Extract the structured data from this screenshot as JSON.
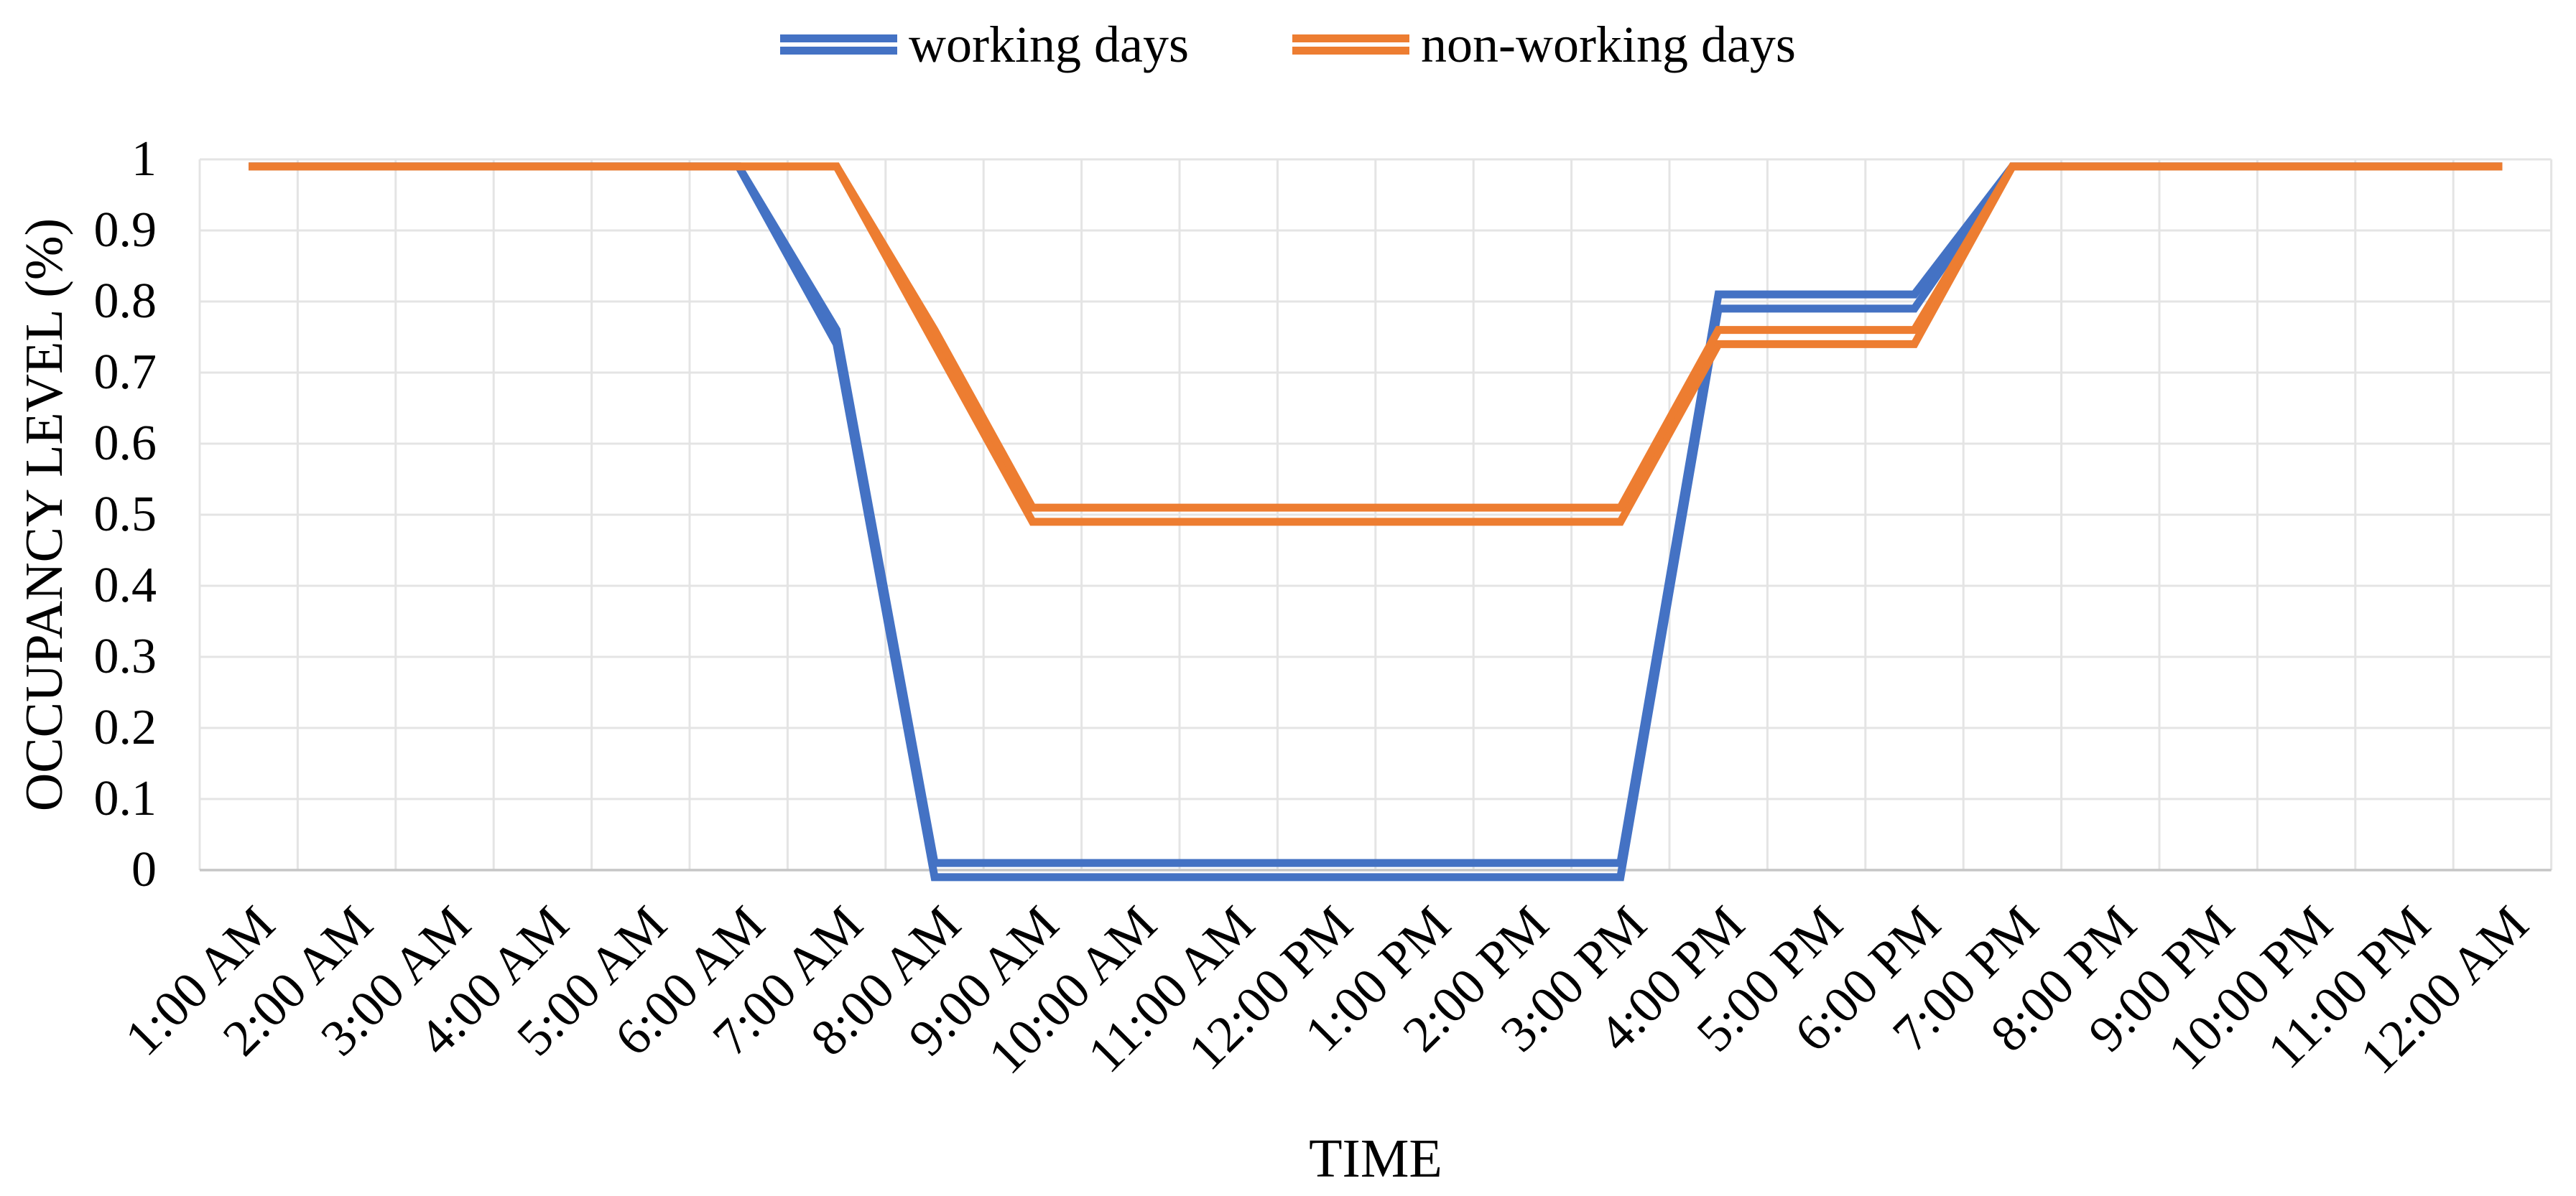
{
  "chart_data": {
    "type": "line",
    "title": "",
    "xlabel": "TIME",
    "ylabel": "OCCUPANCY LEVEL (%)",
    "ylim": [
      0,
      1
    ],
    "ytick_step": 0.1,
    "ytick_labels_top_to_bottom": [
      "1",
      "0.9",
      "0.8",
      "0.7",
      "0.6",
      "0.5",
      "0.4",
      "0.3",
      "0.2",
      "0.1",
      "0"
    ],
    "categories": [
      "1:00 AM",
      "2:00 AM",
      "3:00 AM",
      "4:00 AM",
      "5:00 AM",
      "6:00 AM",
      "7:00 AM",
      "8:00 AM",
      "9:00 AM",
      "10:00 AM",
      "11:00 AM",
      "12:00 PM",
      "1:00 PM",
      "2:00 PM",
      "3:00 PM",
      "4:00 PM",
      "5:00 PM",
      "6:00 PM",
      "7:00 PM",
      "8:00 PM",
      "9:00 PM",
      "10:00 PM",
      "11:00 PM",
      "12:00 AM"
    ],
    "series": [
      {
        "name": "working days",
        "color": "#4472C4",
        "values": [
          1,
          1,
          1,
          1,
          1,
          1,
          0.75,
          0,
          0,
          0,
          0,
          0,
          0,
          0,
          0,
          0.8,
          0.8,
          0.8,
          1,
          1,
          1,
          1,
          1,
          1
        ]
      },
      {
        "name": "non-working days",
        "color": "#ED7D31",
        "values": [
          1,
          1,
          1,
          1,
          1,
          1,
          1,
          0.75,
          0.5,
          0.5,
          0.5,
          0.5,
          0.5,
          0.5,
          0.5,
          0.75,
          0.75,
          0.75,
          1,
          1,
          1,
          1,
          1,
          1
        ]
      }
    ],
    "legend_position": "top-center",
    "grid": true,
    "line_style": "double",
    "top_plateau_draw_value": 0.99,
    "double_line_value_offset": 0.01
  },
  "style": {
    "grid_color": "#E4E4E4",
    "axis_line_color": "#C6C6C6",
    "text_color": "#000000",
    "background": "#FFFFFF"
  }
}
